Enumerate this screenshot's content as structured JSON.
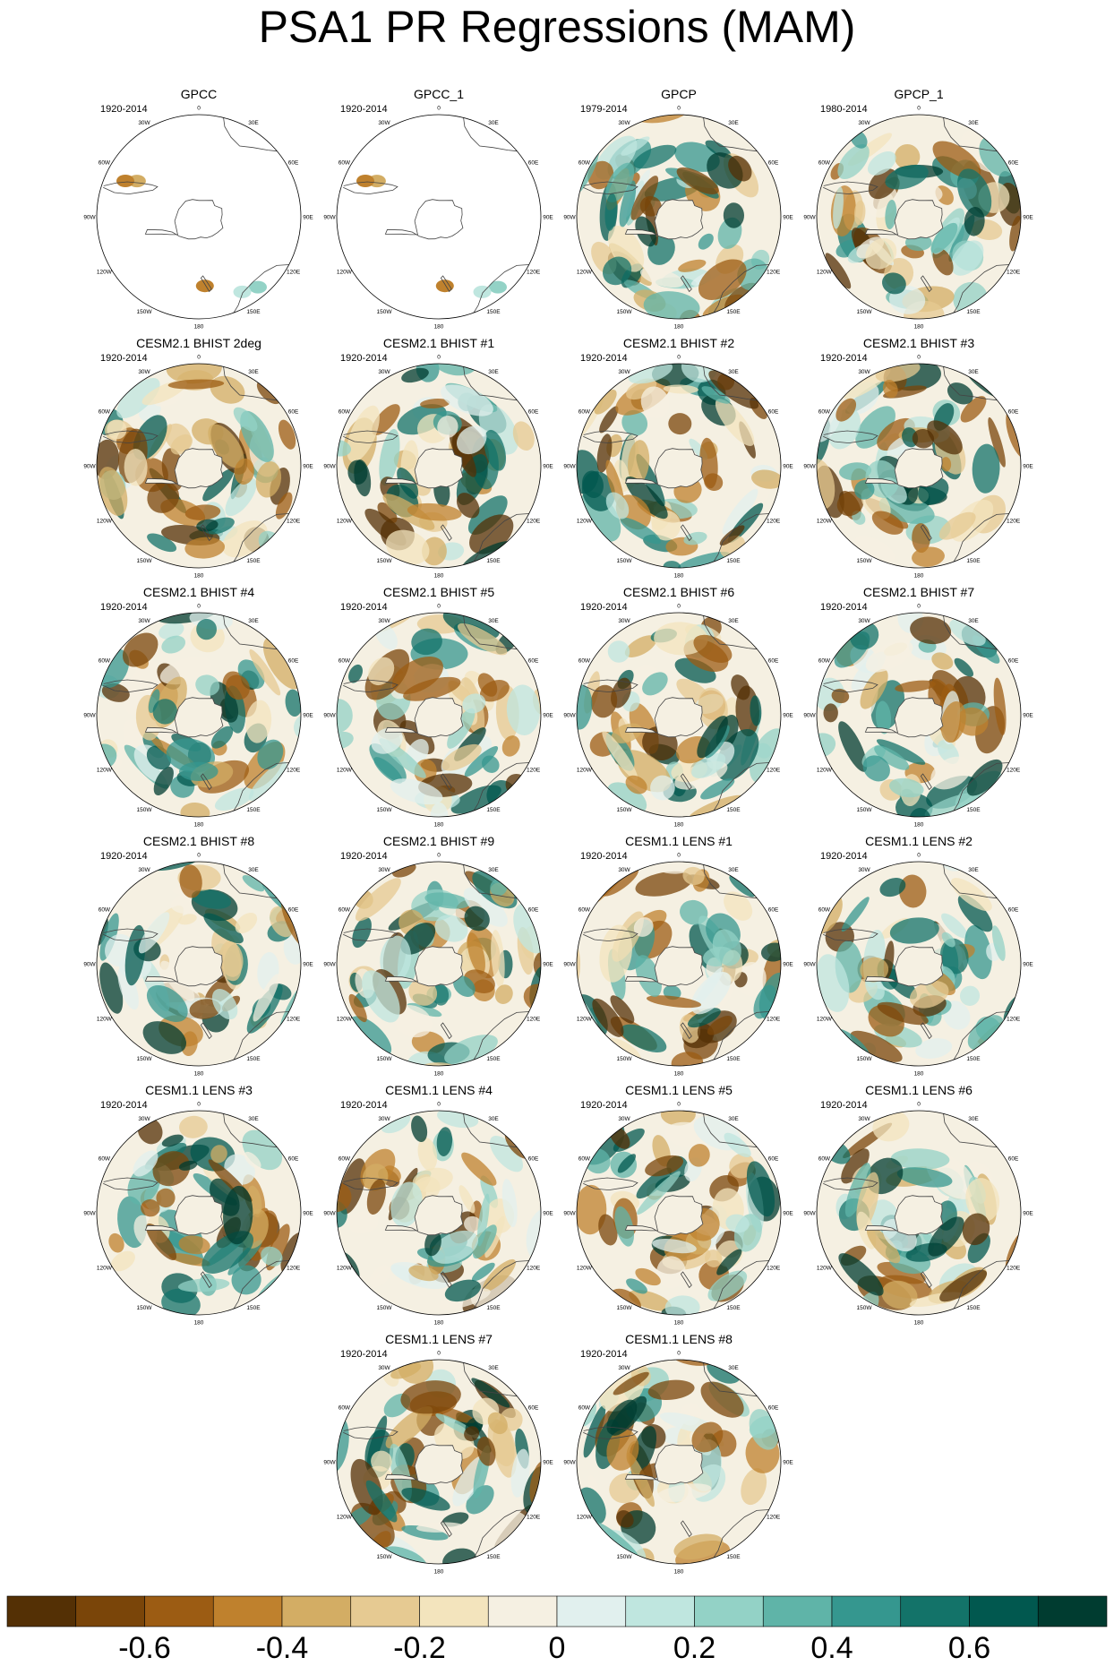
{
  "title": "PSA1 PR Regressions (MAM)",
  "tick_labels": {
    "lon_0": "0",
    "lon_30e": "30E",
    "lon_60e": "60E",
    "lon_90e": "90E",
    "lon_120e": "120E",
    "lon_150e": "150E",
    "lon_180": "180",
    "lon_150w": "150W",
    "lon_120w": "120W",
    "lon_90w": "90W",
    "lon_60w": "60W",
    "lon_30w": "30W"
  },
  "chart_data": {
    "type": "heatmap",
    "projection": "south polar stereographic",
    "variable": "PR",
    "panels": [
      {
        "name": "GPCC",
        "years": "1920-2014",
        "coverage": "land-only"
      },
      {
        "name": "GPCC_1",
        "years": "1920-2014",
        "coverage": "land-only"
      },
      {
        "name": "GPCP",
        "years": "1979-2014",
        "coverage": "global"
      },
      {
        "name": "GPCP_1",
        "years": "1980-2014",
        "coverage": "global"
      },
      {
        "name": "CESM2.1 BHIST 2deg",
        "years": "1920-2014",
        "coverage": "global"
      },
      {
        "name": "CESM2.1 BHIST #1",
        "years": "1920-2014",
        "coverage": "global"
      },
      {
        "name": "CESM2.1 BHIST #2",
        "years": "1920-2014",
        "coverage": "global"
      },
      {
        "name": "CESM2.1 BHIST #3",
        "years": "1920-2014",
        "coverage": "global"
      },
      {
        "name": "CESM2.1 BHIST #4",
        "years": "1920-2014",
        "coverage": "global"
      },
      {
        "name": "CESM2.1 BHIST #5",
        "years": "1920-2014",
        "coverage": "global"
      },
      {
        "name": "CESM2.1 BHIST #6",
        "years": "1920-2014",
        "coverage": "global"
      },
      {
        "name": "CESM2.1 BHIST #7",
        "years": "1920-2014",
        "coverage": "global"
      },
      {
        "name": "CESM2.1 BHIST #8",
        "years": "1920-2014",
        "coverage": "global"
      },
      {
        "name": "CESM2.1 BHIST #9",
        "years": "1920-2014",
        "coverage": "global"
      },
      {
        "name": "CESM1.1 LENS #1",
        "years": "1920-2014",
        "coverage": "global"
      },
      {
        "name": "CESM1.1 LENS #2",
        "years": "1920-2014",
        "coverage": "global"
      },
      {
        "name": "CESM1.1 LENS #3",
        "years": "1920-2014",
        "coverage": "global"
      },
      {
        "name": "CESM1.1 LENS #4",
        "years": "1920-2014",
        "coverage": "global"
      },
      {
        "name": "CESM1.1 LENS #5",
        "years": "1920-2014",
        "coverage": "global"
      },
      {
        "name": "CESM1.1 LENS #6",
        "years": "1920-2014",
        "coverage": "global"
      },
      {
        "name": "CESM1.1 LENS #7",
        "years": "1920-2014",
        "coverage": "global"
      },
      {
        "name": "CESM1.1 LENS #8",
        "years": "1920-2014",
        "coverage": "global"
      }
    ],
    "colorbar": {
      "levels": [
        -0.7,
        -0.6,
        -0.5,
        -0.4,
        -0.3,
        -0.2,
        -0.1,
        0,
        0.1,
        0.2,
        0.3,
        0.4,
        0.5,
        0.6,
        0.7
      ],
      "colors": [
        "#543005",
        "#7a4509",
        "#9c5c13",
        "#bf812d",
        "#d3ad64",
        "#e6ca92",
        "#f3e4bd",
        "#f5f0e2",
        "#e1f0ee",
        "#bfe6df",
        "#93d2c6",
        "#5fb4a8",
        "#35978f",
        "#137369",
        "#01584f",
        "#003c30"
      ],
      "tick_labels": [
        "-0.6",
        "-0.4",
        "-0.2",
        "0",
        "0.2",
        "0.4",
        "0.6"
      ],
      "tick_values": [
        -0.6,
        -0.4,
        -0.2,
        0,
        0.2,
        0.4,
        0.6
      ]
    }
  }
}
